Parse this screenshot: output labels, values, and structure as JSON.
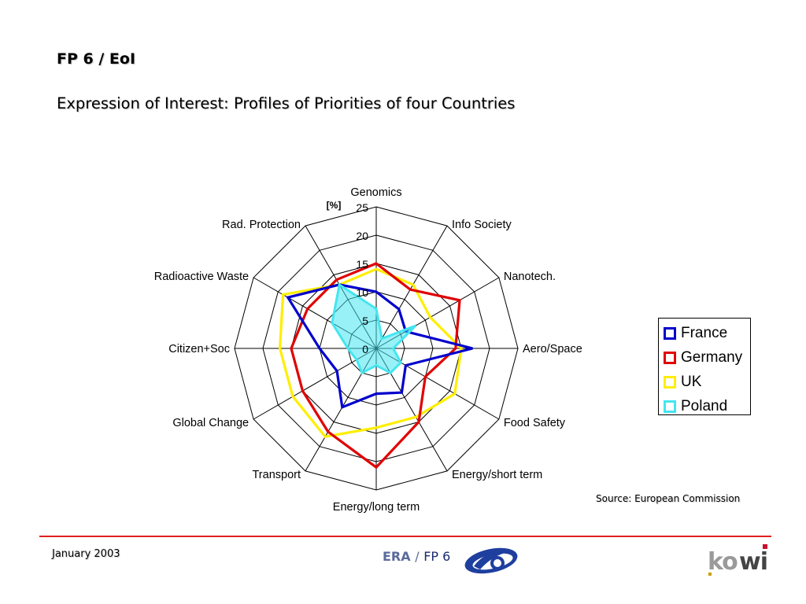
{
  "slide": {
    "heading": "FP 6 / EoI",
    "subheading": "Expression of Interest: Profiles of Priorities of four Countries"
  },
  "chart_data": {
    "type": "radar",
    "title": "",
    "unit_label": "[%]",
    "rlim": [
      0,
      25
    ],
    "ticks": [
      0,
      5,
      10,
      15,
      20,
      25
    ],
    "grid": true,
    "legend_position": "right",
    "categories": [
      "Genomics",
      "Info Society",
      "Nanotech.",
      "Aero/Space",
      "Food Safety",
      "Energy/short term",
      "Energy/long term",
      "Transport",
      "Global Change",
      "Citizen+Soc",
      "Radioactive Waste",
      "Rad. Protection"
    ],
    "series": [
      {
        "name": "France",
        "color": "#0000cc",
        "values": [
          10,
          8,
          6,
          17,
          6,
          9,
          8,
          12,
          8,
          10,
          18,
          13
        ]
      },
      {
        "name": "Germany",
        "color": "#e00000",
        "values": [
          15,
          12,
          17,
          14,
          10,
          15,
          21,
          17,
          15,
          15,
          14,
          14
        ]
      },
      {
        "name": "UK",
        "color": "#ffee00",
        "values": [
          14,
          13,
          11,
          15,
          16,
          14,
          14,
          18,
          17,
          17,
          19,
          13
        ]
      },
      {
        "name": "Poland",
        "color": "#44e6f0",
        "values": [
          7,
          2,
          8,
          3,
          5,
          5,
          3,
          5,
          4,
          5,
          9,
          13
        ]
      }
    ]
  },
  "source_text": "Source: European Commission",
  "footer": {
    "date": "January 2003",
    "era_label": "ERA",
    "separator": "/",
    "fp_label": "FP 6",
    "kowi_logo_text": "kowi"
  },
  "icons": {
    "fp6_logo": "fp6-logo-icon",
    "kowi_logo": "kowi-logo-icon"
  }
}
